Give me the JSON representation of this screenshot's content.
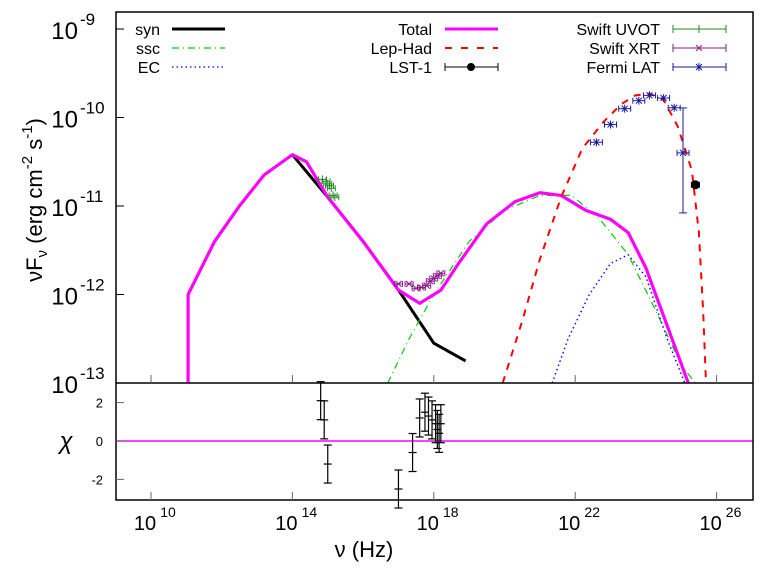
{
  "chart_data": {
    "type": "line",
    "title": "",
    "xlabel": "ν (Hz)",
    "ylabel": "νF_ν (erg cm^-2 s^-1)",
    "residual_ylabel": "χ",
    "x_scale": "log",
    "y_scale": "log",
    "xlim": [
      3000000000.0,
      1e+27
    ],
    "ylim": [
      1e-13,
      1.5e-09
    ],
    "residual_ylim": [
      -3,
      3
    ],
    "x_ticks": [
      {
        "exp": "10",
        "label": "10",
        "pow": 10
      },
      {
        "exp": "14",
        "label": "10",
        "pow": 14
      },
      {
        "exp": "18",
        "label": "10",
        "pow": 18
      },
      {
        "exp": "22",
        "label": "10",
        "pow": 22
      },
      {
        "exp": "26",
        "label": "10",
        "pow": 26
      }
    ],
    "y_ticks": [
      {
        "label": "10",
        "exp": "-9",
        "pow": -9
      },
      {
        "label": "10",
        "exp": "-10",
        "pow": -10
      },
      {
        "label": "10",
        "exp": "-11",
        "pow": -11
      },
      {
        "label": "10",
        "exp": "-12",
        "pow": -12
      },
      {
        "label": "10",
        "exp": "-13",
        "pow": -13
      }
    ],
    "residual_ticks": [
      "2",
      "0",
      "-2"
    ],
    "legend": {
      "col1": [
        {
          "label": "syn",
          "color": "#000000",
          "style": "solid-thick"
        },
        {
          "label": "ssc",
          "color": "#00cc00",
          "style": "dash-dot"
        },
        {
          "label": "EC",
          "color": "#0000ff",
          "style": "dotted"
        }
      ],
      "col2": [
        {
          "label": "Total",
          "color": "#ff00ff",
          "style": "solid-thick"
        },
        {
          "label": "Lep-Had",
          "color": "#ff0000",
          "style": "dashed"
        },
        {
          "label": "LST-1",
          "color": "#000000",
          "style": "errorbar-dot"
        }
      ],
      "col3": [
        {
          "label": "Swift UVOT",
          "color": "#228b22",
          "style": "errorbar-plus"
        },
        {
          "label": "Swift XRT",
          "color": "#8b1a8b",
          "style": "errorbar-x"
        },
        {
          "label": "Fermi LAT",
          "color": "#1a1a9b",
          "style": "errorbar-star"
        }
      ]
    },
    "series": [
      {
        "name": "syn",
        "color": "#000000",
        "points_log": [
          [
            14.0,
            -10.42
          ],
          [
            15.0,
            -10.9
          ],
          [
            16.0,
            -11.4
          ],
          [
            17.0,
            -11.95
          ],
          [
            18.0,
            -12.55
          ],
          [
            18.9,
            -12.75
          ]
        ]
      },
      {
        "name": "ssc",
        "color": "#00cc00",
        "points_log": [
          [
            16.7,
            -13.0
          ],
          [
            17.3,
            -12.5
          ],
          [
            18.0,
            -12.0
          ],
          [
            19.0,
            -11.4
          ],
          [
            20.0,
            -11.05
          ],
          [
            21.0,
            -10.88
          ],
          [
            21.9,
            -10.88
          ],
          [
            22.7,
            -11.15
          ],
          [
            23.5,
            -11.55
          ],
          [
            24.3,
            -12.2
          ],
          [
            25.0,
            -12.8
          ],
          [
            25.4,
            -13.0
          ]
        ]
      },
      {
        "name": "EC",
        "color": "#0000ff",
        "points_log": [
          [
            21.35,
            -13.0
          ],
          [
            21.8,
            -12.5
          ],
          [
            22.4,
            -12.0
          ],
          [
            23.0,
            -11.65
          ],
          [
            23.5,
            -11.55
          ],
          [
            24.0,
            -11.8
          ],
          [
            24.6,
            -12.5
          ],
          [
            25.1,
            -13.0
          ]
        ]
      },
      {
        "name": "Total",
        "color": "#ff00ff",
        "points_log": [
          [
            11.05,
            -13.0
          ],
          [
            11.05,
            -12.0
          ],
          [
            11.8,
            -11.4
          ],
          [
            12.5,
            -11.0
          ],
          [
            13.2,
            -10.65
          ],
          [
            14.0,
            -10.42
          ],
          [
            14.4,
            -10.5
          ],
          [
            15.0,
            -10.9
          ],
          [
            16.0,
            -11.4
          ],
          [
            17.0,
            -11.95
          ],
          [
            17.6,
            -12.1
          ],
          [
            18.2,
            -11.95
          ],
          [
            18.7,
            -11.65
          ],
          [
            19.5,
            -11.2
          ],
          [
            20.3,
            -10.95
          ],
          [
            21.0,
            -10.85
          ],
          [
            21.6,
            -10.88
          ],
          [
            22.3,
            -11.05
          ],
          [
            23.0,
            -11.15
          ],
          [
            23.5,
            -11.3
          ],
          [
            24.0,
            -11.7
          ],
          [
            24.6,
            -12.35
          ],
          [
            25.2,
            -13.0
          ]
        ]
      },
      {
        "name": "Lep-Had",
        "color": "#ff0000",
        "points_log": [
          [
            19.95,
            -13.0
          ],
          [
            20.5,
            -12.3
          ],
          [
            21.0,
            -11.6
          ],
          [
            21.6,
            -10.9
          ],
          [
            22.2,
            -10.35
          ],
          [
            22.8,
            -10.05
          ],
          [
            23.3,
            -9.85
          ],
          [
            23.7,
            -9.75
          ],
          [
            24.1,
            -9.73
          ],
          [
            24.5,
            -9.8
          ],
          [
            24.9,
            -10.1
          ],
          [
            25.3,
            -10.6
          ],
          [
            25.5,
            -11.3
          ],
          [
            25.62,
            -12.2
          ],
          [
            25.7,
            -13.0
          ]
        ]
      }
    ],
    "data_points": {
      "Swift UVOT": [
        [
          14.85,
          -10.7
        ],
        [
          14.95,
          -10.72
        ],
        [
          15.0,
          -10.75
        ],
        [
          15.05,
          -10.77
        ],
        [
          15.1,
          -10.8
        ],
        [
          15.15,
          -10.88
        ],
        [
          15.2,
          -10.9
        ]
      ],
      "Swift XRT": [
        [
          17.0,
          -11.88
        ],
        [
          17.3,
          -11.88
        ],
        [
          17.5,
          -11.93
        ],
        [
          17.65,
          -11.92
        ],
        [
          17.8,
          -11.9
        ],
        [
          17.9,
          -11.85
        ],
        [
          18.0,
          -11.82
        ],
        [
          18.1,
          -11.79
        ],
        [
          18.2,
          -11.76
        ]
      ],
      "Fermi LAT": [
        [
          22.6,
          -10.28
        ],
        [
          23.0,
          -10.08
        ],
        [
          23.4,
          -9.9
        ],
        [
          23.8,
          -9.81
        ],
        [
          24.1,
          -9.75
        ],
        [
          24.5,
          -9.78
        ],
        [
          24.8,
          -9.89
        ],
        [
          25.05,
          -10.4
        ]
      ],
      "LST-1": [
        [
          25.4,
          -10.76
        ]
      ]
    },
    "residuals": [
      [
        14.8,
        2.1
      ],
      [
        14.9,
        1.1
      ],
      [
        15.0,
        -1.2
      ],
      [
        17.0,
        -2.5
      ],
      [
        17.4,
        -0.6
      ],
      [
        17.6,
        1.2
      ],
      [
        17.75,
        1.5
      ],
      [
        17.85,
        1.3
      ],
      [
        17.95,
        1.1
      ],
      [
        18.05,
        0.9
      ],
      [
        18.1,
        0.6
      ],
      [
        18.15,
        0.4
      ],
      [
        18.2,
        0.9
      ]
    ],
    "grid": false,
    "legend_position": "top inside"
  }
}
